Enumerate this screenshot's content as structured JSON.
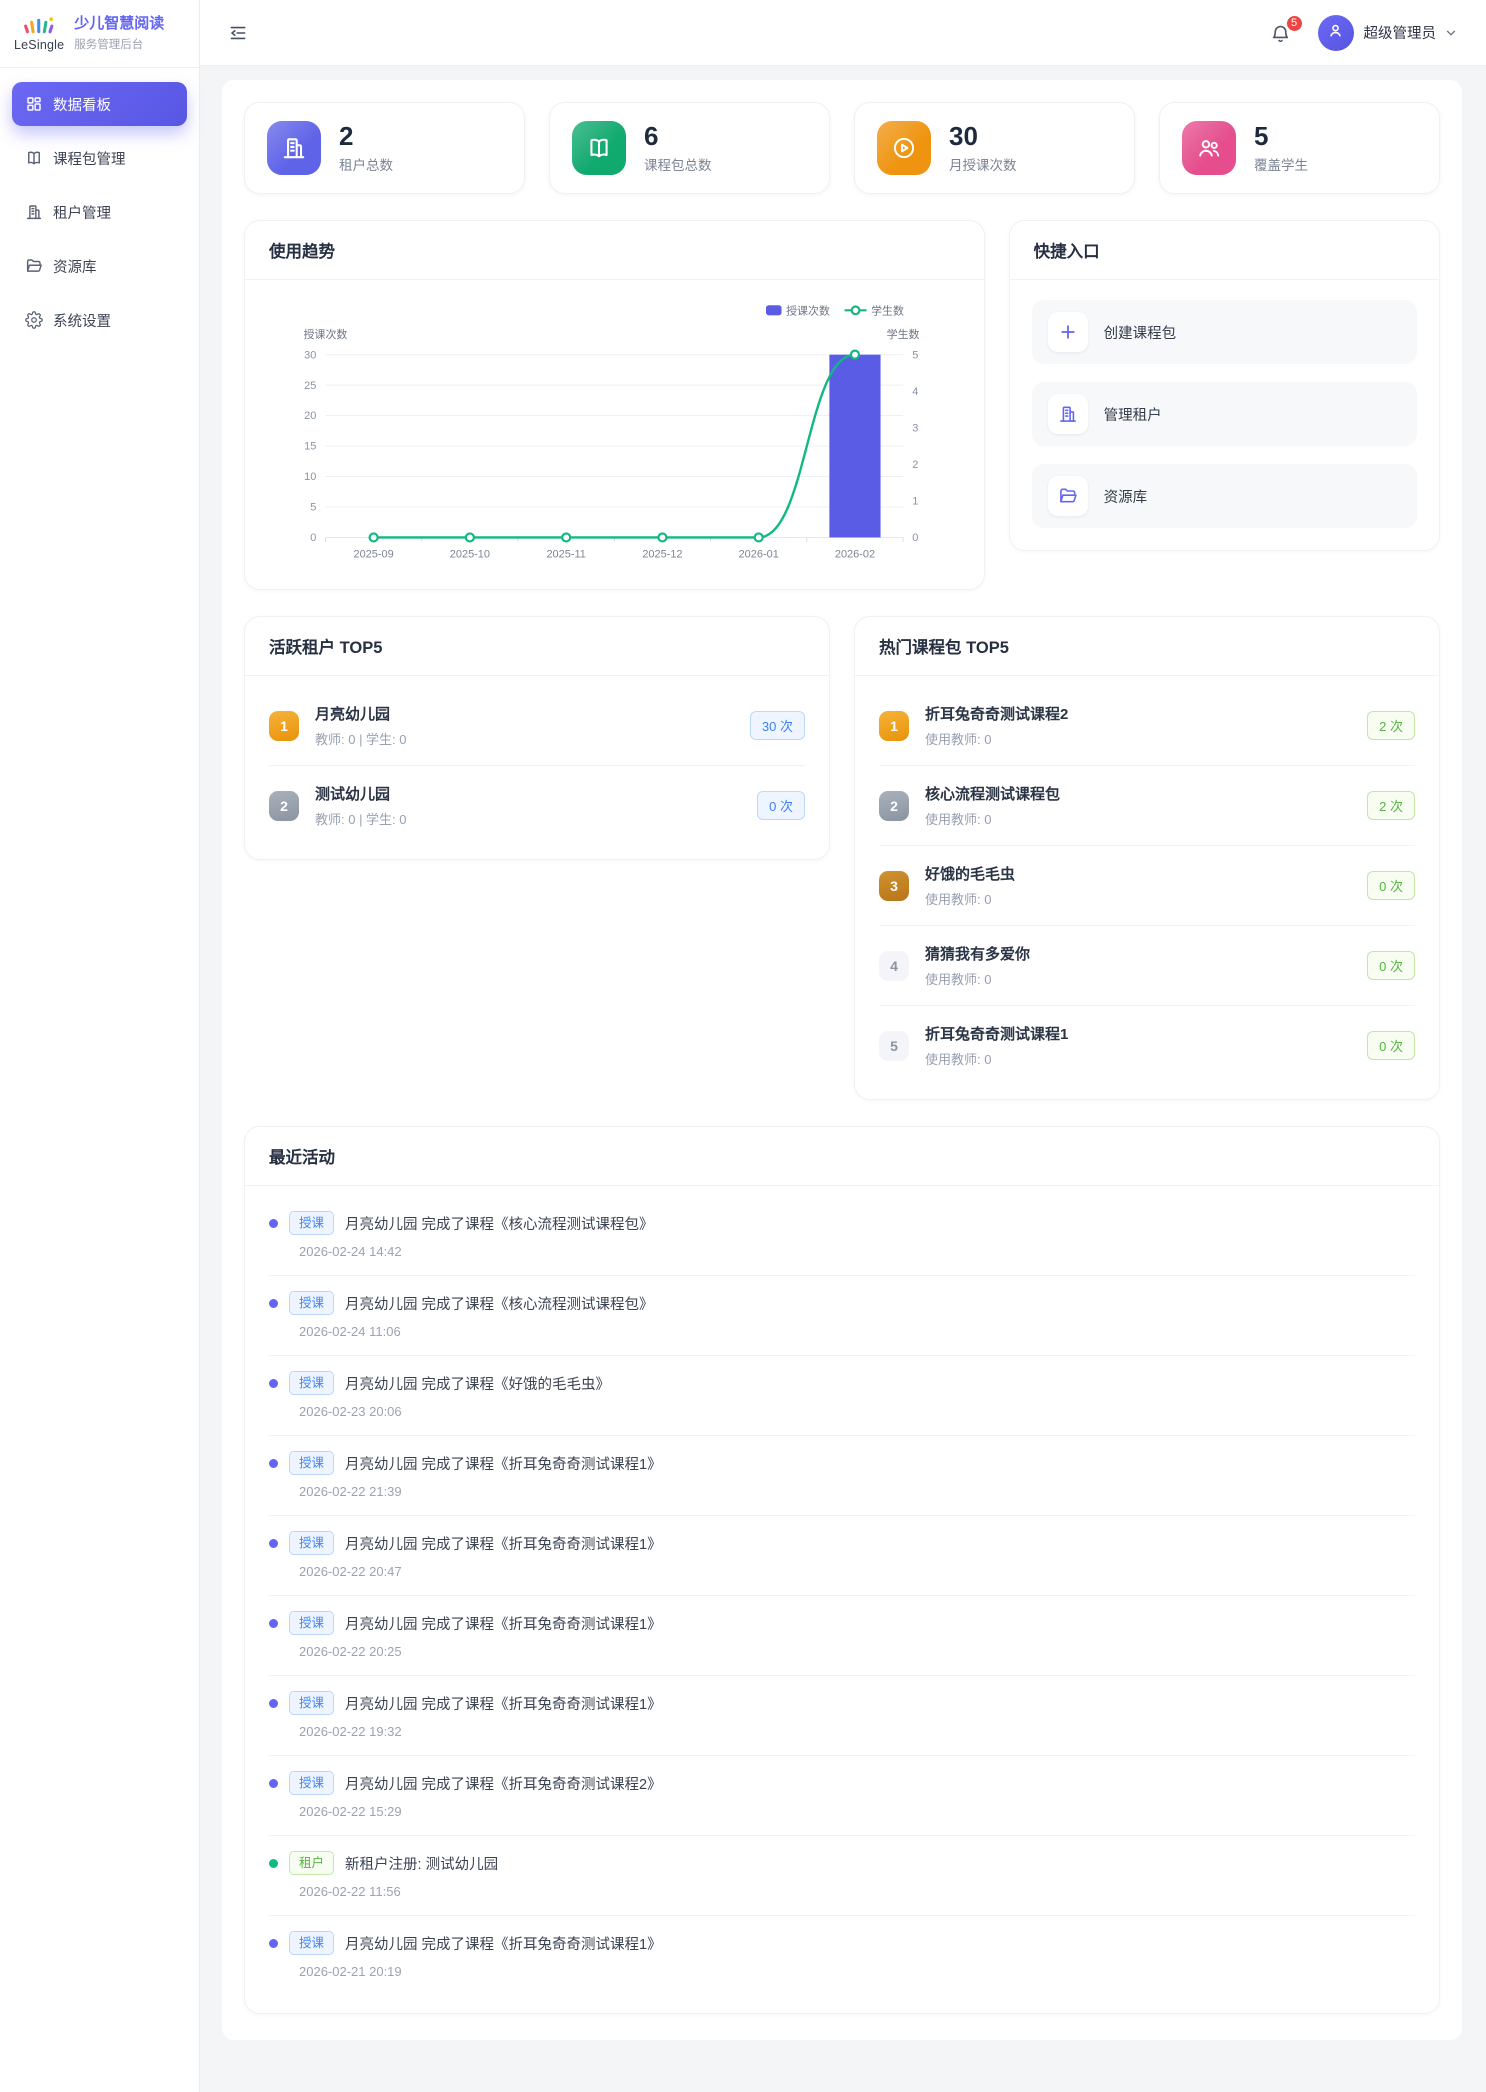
{
  "brand": {
    "logo_text": "LeSingle",
    "title": "少儿智慧阅读",
    "subtitle": "服务管理后台"
  },
  "sidebar": {
    "items": [
      {
        "label": "数据看板",
        "icon": "dashboard",
        "active": true
      },
      {
        "label": "课程包管理",
        "icon": "book"
      },
      {
        "label": "租户管理",
        "icon": "building"
      },
      {
        "label": "资源库",
        "icon": "folder"
      },
      {
        "label": "系统设置",
        "icon": "gear"
      }
    ]
  },
  "header": {
    "notification_count": "5",
    "user_name": "超级管理员"
  },
  "stats": [
    {
      "value": "2",
      "label": "租户总数",
      "icon": "building",
      "color": "#5f63e8"
    },
    {
      "value": "6",
      "label": "课程包总数",
      "icon": "book",
      "color": "#10a96e"
    },
    {
      "value": "30",
      "label": "月授课次数",
      "icon": "play",
      "color": "#ef9410"
    },
    {
      "value": "5",
      "label": "覆盖学生",
      "icon": "users",
      "color": "#e54d8c"
    }
  ],
  "usage_trend": {
    "title": "使用趋势"
  },
  "chart_data": {
    "type": "bar+line dual-axis",
    "title": "使用趋势",
    "categories": [
      "2025-09",
      "2025-10",
      "2025-11",
      "2025-12",
      "2026-01",
      "2026-02"
    ],
    "series": [
      {
        "name": "授课次数",
        "type": "bar",
        "axis": "left",
        "values": [
          0,
          0,
          0,
          0,
          0,
          30
        ],
        "color": "#5b5ce6"
      },
      {
        "name": "学生数",
        "type": "line",
        "axis": "right",
        "values": [
          0,
          0,
          0,
          0,
          0,
          5
        ],
        "color": "#10b981"
      }
    ],
    "left_axis": {
      "name": "授课次数",
      "min": 0,
      "max": 30,
      "ticks": [
        0,
        5,
        10,
        15,
        20,
        25,
        30
      ]
    },
    "right_axis": {
      "name": "学生数",
      "min": 0,
      "max": 5,
      "ticks": [
        0,
        1,
        2,
        3,
        4,
        5
      ]
    },
    "grid": true,
    "legend_position": "top-right"
  },
  "quick_entry": {
    "title": "快捷入口",
    "items": [
      {
        "label": "创建课程包",
        "icon": "plus"
      },
      {
        "label": "管理租户",
        "icon": "building"
      },
      {
        "label": "资源库",
        "icon": "folder"
      }
    ]
  },
  "active_tenants": {
    "title": "活跃租户 TOP5",
    "items": [
      {
        "rank": "1",
        "rank_tone": "gold",
        "name": "月亮幼儿园",
        "meta": "教师: 0 | 学生: 0",
        "count": "30 次",
        "pill_tone": "blue"
      },
      {
        "rank": "2",
        "rank_tone": "silver",
        "name": "测试幼儿园",
        "meta": "教师: 0 | 学生: 0",
        "count": "0 次",
        "pill_tone": "blue"
      }
    ]
  },
  "hot_packages": {
    "title": "热门课程包 TOP5",
    "items": [
      {
        "rank": "1",
        "rank_tone": "gold",
        "name": "折耳兔奇奇测试课程2",
        "meta": "使用教师: 0",
        "count": "2 次",
        "pill_tone": "green"
      },
      {
        "rank": "2",
        "rank_tone": "silver",
        "name": "核心流程测试课程包",
        "meta": "使用教师: 0",
        "count": "2 次",
        "pill_tone": "green"
      },
      {
        "rank": "3",
        "rank_tone": "bronze",
        "name": "好饿的毛毛虫",
        "meta": "使用教师: 0",
        "count": "0 次",
        "pill_tone": "green"
      },
      {
        "rank": "4",
        "rank_tone": "plain",
        "name": "猜猜我有多爱你",
        "meta": "使用教师: 0",
        "count": "0 次",
        "pill_tone": "green"
      },
      {
        "rank": "5",
        "rank_tone": "plain",
        "name": "折耳兔奇奇测试课程1",
        "meta": "使用教师: 0",
        "count": "0 次",
        "pill_tone": "green"
      }
    ]
  },
  "activities": {
    "title": "最近活动",
    "items": [
      {
        "tag": "授课",
        "tone": "blue",
        "text": "月亮幼儿园 完成了课程《核心流程测试课程包》",
        "time": "2026-02-24 14:42"
      },
      {
        "tag": "授课",
        "tone": "blue",
        "text": "月亮幼儿园 完成了课程《核心流程测试课程包》",
        "time": "2026-02-24 11:06"
      },
      {
        "tag": "授课",
        "tone": "blue",
        "text": "月亮幼儿园 完成了课程《好饿的毛毛虫》",
        "time": "2026-02-23 20:06"
      },
      {
        "tag": "授课",
        "tone": "blue",
        "text": "月亮幼儿园 完成了课程《折耳兔奇奇测试课程1》",
        "time": "2026-02-22 21:39"
      },
      {
        "tag": "授课",
        "tone": "blue",
        "text": "月亮幼儿园 完成了课程《折耳兔奇奇测试课程1》",
        "time": "2026-02-22 20:47"
      },
      {
        "tag": "授课",
        "tone": "blue",
        "text": "月亮幼儿园 完成了课程《折耳兔奇奇测试课程1》",
        "time": "2026-02-22 20:25"
      },
      {
        "tag": "授课",
        "tone": "blue",
        "text": "月亮幼儿园 完成了课程《折耳兔奇奇测试课程1》",
        "time": "2026-02-22 19:32"
      },
      {
        "tag": "授课",
        "tone": "blue",
        "text": "月亮幼儿园 完成了课程《折耳兔奇奇测试课程2》",
        "time": "2026-02-22 15:29"
      },
      {
        "tag": "租户",
        "tone": "green",
        "text": "新租户注册: 测试幼儿园",
        "time": "2026-02-22 11:56"
      },
      {
        "tag": "授课",
        "tone": "blue",
        "text": "月亮幼儿园 完成了课程《折耳兔奇奇测试课程1》",
        "time": "2026-02-21 20:19"
      }
    ]
  }
}
